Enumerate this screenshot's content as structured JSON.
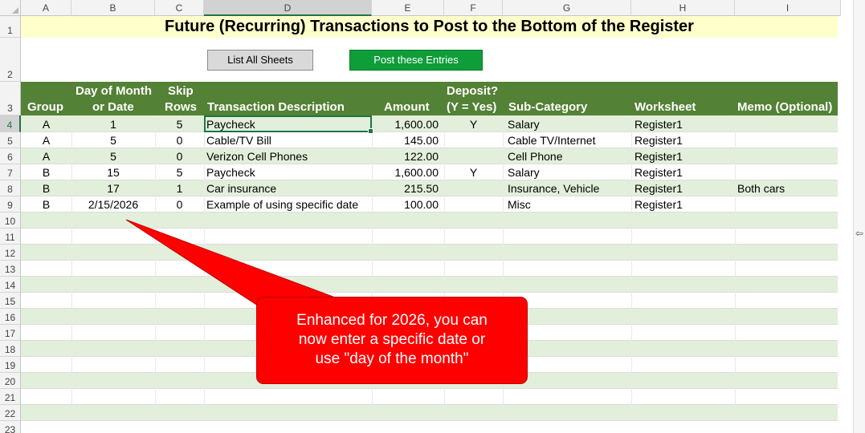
{
  "columns": [
    "A",
    "B",
    "C",
    "D",
    "E",
    "F",
    "G",
    "H",
    "I"
  ],
  "rows": [
    "1",
    "2",
    "3",
    "4",
    "5",
    "6",
    "7",
    "8",
    "9",
    "10",
    "11",
    "12",
    "13",
    "14",
    "15",
    "16",
    "17",
    "18",
    "19",
    "20",
    "21",
    "22",
    "23"
  ],
  "title": "Future (Recurring) Transactions to Post to the Bottom of the Register",
  "buttons": {
    "list_sheets": "List All Sheets",
    "post_entries": "Post these Entries"
  },
  "headers": {
    "group": "Group",
    "day_of_month_1": "Day of Month",
    "day_of_month_2": "or Date",
    "skip_1": "Skip",
    "skip_2": "Rows",
    "description": "Transaction Description",
    "amount": "Amount",
    "deposit_1": "Deposit?",
    "deposit_2": "(Y = Yes)",
    "subcategory": "Sub-Category",
    "worksheet": "Worksheet",
    "memo": "Memo (Optional)"
  },
  "transactions": [
    {
      "group": "A",
      "day": "1",
      "skip": "5",
      "description": "Paycheck",
      "amount": "1,600.00",
      "deposit": "Y",
      "subcategory": "Salary",
      "worksheet": "Register1",
      "memo": ""
    },
    {
      "group": "A",
      "day": "5",
      "skip": "0",
      "description": "Cable/TV Bill",
      "amount": "145.00",
      "deposit": "",
      "subcategory": "Cable TV/Internet",
      "worksheet": "Register1",
      "memo": ""
    },
    {
      "group": "A",
      "day": "5",
      "skip": "0",
      "description": "Verizon Cell Phones",
      "amount": "122.00",
      "deposit": "",
      "subcategory": "Cell Phone",
      "worksheet": "Register1",
      "memo": ""
    },
    {
      "group": "B",
      "day": "15",
      "skip": "5",
      "description": "Paycheck",
      "amount": "1,600.00",
      "deposit": "Y",
      "subcategory": "Salary",
      "worksheet": "Register1",
      "memo": ""
    },
    {
      "group": "B",
      "day": "17",
      "skip": "1",
      "description": "Car insurance",
      "amount": "215.50",
      "deposit": "",
      "subcategory": "Insurance, Vehicle",
      "worksheet": "Register1",
      "memo": "Both cars"
    },
    {
      "group": "B",
      "day": "2/15/2026",
      "skip": "0",
      "description": "Example of using specific date",
      "amount": "100.00",
      "deposit": "",
      "subcategory": "Misc",
      "worksheet": "Register1",
      "memo": ""
    }
  ],
  "callout": {
    "line1": "Enhanced for 2026, you can",
    "line2": "now enter a specific date or",
    "line3": "use \"day of the month\""
  },
  "colors": {
    "header_green": "#538135",
    "band_green": "#e2efda",
    "title_yellow": "#ffffcc",
    "button_green": "#0f9d3a",
    "callout_red": "#ff0000"
  }
}
